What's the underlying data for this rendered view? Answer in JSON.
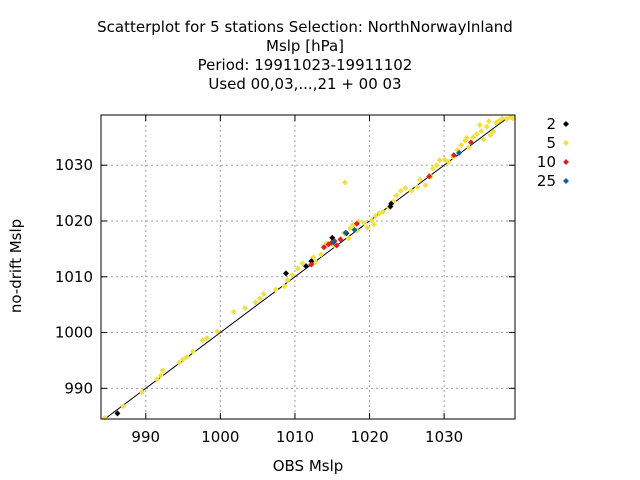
{
  "chart_data": {
    "type": "scatter",
    "title_lines": [
      "Scatterplot for    5 stations Selection: NorthNorwayInland",
      "Mslp [hPa]",
      "Period: 19911023-19911102",
      "Used  00,03,...,21  + 00 03"
    ],
    "xlabel": "OBS Mslp",
    "ylabel": "no-drift Mslp",
    "xlim": [
      984,
      1039.5
    ],
    "ylim": [
      984.5,
      1039
    ],
    "xticks": [
      990,
      1000,
      1010,
      1020,
      1030
    ],
    "yticks": [
      990,
      1000,
      1010,
      1020,
      1030
    ],
    "grid": true,
    "legend_position": "right",
    "reference_line": "y = x",
    "series": [
      {
        "name": "5",
        "color": "#f0e040",
        "points": [
          [
            984.5,
            984.7
          ],
          [
            987.0,
            986.8
          ],
          [
            989.5,
            989.3
          ],
          [
            991.5,
            991.6
          ],
          [
            992.0,
            992.3
          ],
          [
            992.3,
            993.2
          ],
          [
            994.5,
            994.6
          ],
          [
            995.0,
            995.2
          ],
          [
            995.5,
            995.6
          ],
          [
            996.3,
            996.6
          ],
          [
            997.6,
            998.6
          ],
          [
            998.2,
            999.0
          ],
          [
            999.6,
            1000.2
          ],
          [
            1001.8,
            1003.7
          ],
          [
            1003.3,
            1004.4
          ],
          [
            1004.7,
            1005.4
          ],
          [
            1005.3,
            1006.1
          ],
          [
            1005.8,
            1006.9
          ],
          [
            1007.4,
            1007.7
          ],
          [
            1008.6,
            1008.3
          ],
          [
            1009.0,
            1009.4
          ],
          [
            1009.6,
            1010.3
          ],
          [
            1010.4,
            1011.5
          ],
          [
            1011.0,
            1012.4
          ],
          [
            1012.5,
            1013.5
          ],
          [
            1012.8,
            1012.6
          ],
          [
            1013.5,
            1014.0
          ],
          [
            1013.8,
            1015.3
          ],
          [
            1014.2,
            1016.0
          ],
          [
            1015.3,
            1015.6
          ],
          [
            1016.6,
            1017.8
          ],
          [
            1016.7,
            1026.9
          ],
          [
            1017.2,
            1016.9
          ],
          [
            1017.4,
            1018.7
          ],
          [
            1017.8,
            1019.3
          ],
          [
            1018.3,
            1018.3
          ],
          [
            1018.5,
            1019.9
          ],
          [
            1019.3,
            1019.6
          ],
          [
            1019.7,
            1018.8
          ],
          [
            1020.3,
            1020.1
          ],
          [
            1020.8,
            1020.9
          ],
          [
            1020.6,
            1019.4
          ],
          [
            1021.3,
            1021.4
          ],
          [
            1021.8,
            1021.6
          ],
          [
            1022.6,
            1022.4
          ],
          [
            1023.2,
            1023.5
          ],
          [
            1023.6,
            1024.6
          ],
          [
            1024.2,
            1025.4
          ],
          [
            1024.8,
            1025.9
          ],
          [
            1025.6,
            1025.4
          ],
          [
            1026.4,
            1026.1
          ],
          [
            1026.8,
            1027.4
          ],
          [
            1027.5,
            1026.4
          ],
          [
            1028.2,
            1028.0
          ],
          [
            1028.5,
            1029.4
          ],
          [
            1029.0,
            1030.0
          ],
          [
            1029.4,
            1030.9
          ],
          [
            1030.1,
            1031.0
          ],
          [
            1030.6,
            1030.6
          ],
          [
            1031.2,
            1031.5
          ],
          [
            1031.8,
            1032.7
          ],
          [
            1032.3,
            1033.6
          ],
          [
            1032.8,
            1034.4
          ],
          [
            1033.3,
            1033.2
          ],
          [
            1033.9,
            1035.0
          ],
          [
            1034.4,
            1035.6
          ],
          [
            1035.0,
            1036.1
          ],
          [
            1035.3,
            1034.6
          ],
          [
            1035.7,
            1036.9
          ],
          [
            1036.2,
            1035.4
          ],
          [
            1036.6,
            1036.0
          ],
          [
            1037.0,
            1037.6
          ],
          [
            1037.4,
            1038.0
          ],
          [
            1037.8,
            1038.4
          ],
          [
            1038.4,
            1038.3
          ],
          [
            1038.9,
            1038.6
          ],
          [
            1039.2,
            1038.4
          ],
          [
            1034.8,
            1037.2
          ],
          [
            1036.0,
            1037.9
          ],
          [
            1033.0,
            1034.9
          ]
        ]
      },
      {
        "name": "2",
        "color": "#000000",
        "points": [
          [
            986.2,
            985.5
          ],
          [
            1008.8,
            1010.6
          ],
          [
            1011.5,
            1011.9
          ],
          [
            1012.2,
            1012.8
          ],
          [
            1015.0,
            1017.0
          ],
          [
            1022.8,
            1022.6
          ],
          [
            1022.9,
            1023.1
          ],
          [
            1016.9,
            1017.8
          ]
        ]
      },
      {
        "name": "10",
        "color": "#e02020",
        "points": [
          [
            1012.2,
            1012.2
          ],
          [
            1013.9,
            1015.3
          ],
          [
            1014.5,
            1015.8
          ],
          [
            1014.9,
            1016.1
          ],
          [
            1015.3,
            1016.4
          ],
          [
            1015.6,
            1015.6
          ],
          [
            1016.1,
            1016.7
          ],
          [
            1018.3,
            1019.5
          ],
          [
            1028.0,
            1028.0
          ],
          [
            1031.3,
            1031.8
          ],
          [
            1033.6,
            1034.1
          ]
        ]
      },
      {
        "name": "25",
        "color": "#1060a0",
        "points": [
          [
            1015.2,
            1016.2
          ],
          [
            1016.8,
            1017.9
          ],
          [
            1018.0,
            1018.4
          ],
          [
            1032.0,
            1032.2
          ]
        ]
      }
    ],
    "legend": [
      {
        "label": "2",
        "color": "#000000"
      },
      {
        "label": "5",
        "color": "#f0e040"
      },
      {
        "label": "10",
        "color": "#e02020"
      },
      {
        "label": "25",
        "color": "#1060a0"
      }
    ]
  }
}
